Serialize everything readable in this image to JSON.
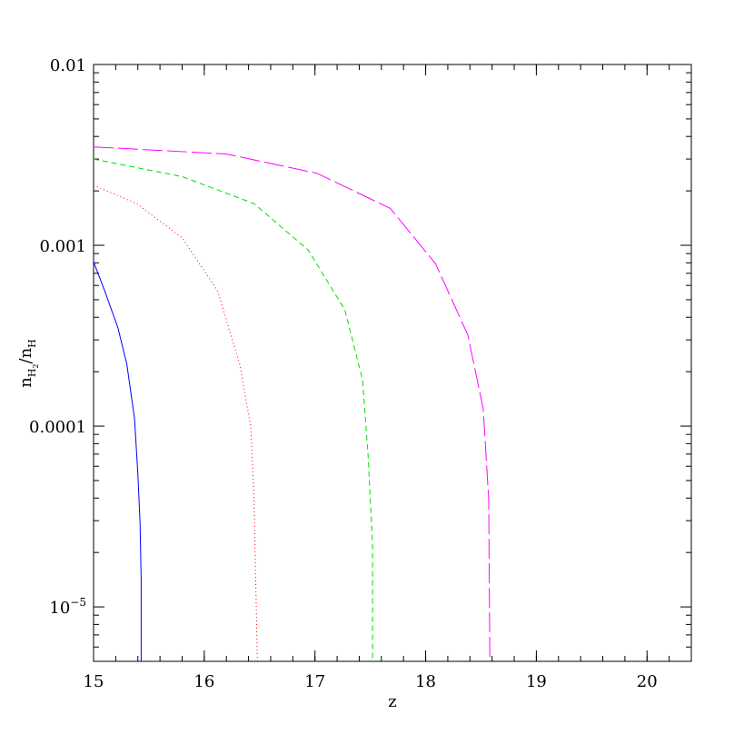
{
  "chart_data": {
    "type": "line",
    "xlabel": "z",
    "ylabel": [
      {
        "text": "n"
      },
      {
        "text": "H",
        "sub": 1
      },
      {
        "text": "2",
        "sub": 2
      },
      {
        "text": "/n"
      },
      {
        "text": "H",
        "sub": 1
      }
    ],
    "xlim": [
      15,
      20.4
    ],
    "xticks": [
      15,
      16,
      17,
      18,
      19,
      20
    ],
    "ylim": [
      5e-06,
      0.01
    ],
    "ylog": true,
    "yticks": [
      0.01,
      0.001,
      0.0001,
      {
        "value": 1e-05,
        "label": "10",
        "exponent": "−5"
      }
    ],
    "series": [
      {
        "color": "#0000ff",
        "dash": "solid",
        "x": [
          15,
          15.1,
          15.22,
          15.3,
          15.37,
          15.4,
          15.42,
          15.43,
          15.43
        ],
        "values": [
          0.00081,
          0.00056,
          0.00035,
          0.00022,
          0.00011,
          5.5e-05,
          2.9e-05,
          1.4e-05,
          5e-06
        ]
      },
      {
        "color": "#ff0000",
        "dash": "dotted",
        "x": [
          15,
          15.39,
          15.8,
          16.12,
          16.32,
          16.42,
          16.45,
          16.48
        ],
        "values": [
          0.00215,
          0.0017,
          0.0011,
          0.00056,
          0.00022,
          0.0001,
          3.9e-05,
          5e-06
        ]
      },
      {
        "color": "#00dd00",
        "dash": "dashed",
        "x": [
          15,
          15.8,
          16.45,
          16.94,
          17.27,
          17.43,
          17.48,
          17.52,
          17.52
        ],
        "values": [
          0.003,
          0.0024,
          0.0017,
          0.00094,
          0.00044,
          0.00018,
          6.9e-05,
          2.2e-05,
          5e-06
        ]
      },
      {
        "color": "#ff00ff",
        "dash": "longdash",
        "x": [
          15,
          16.2,
          17.02,
          17.68,
          18.09,
          18.38,
          18.52,
          18.57,
          18.58
        ],
        "values": [
          0.0035,
          0.0032,
          0.0025,
          0.0016,
          0.00079,
          0.00032,
          0.000125,
          3.9e-05,
          5e-06
        ]
      }
    ]
  }
}
